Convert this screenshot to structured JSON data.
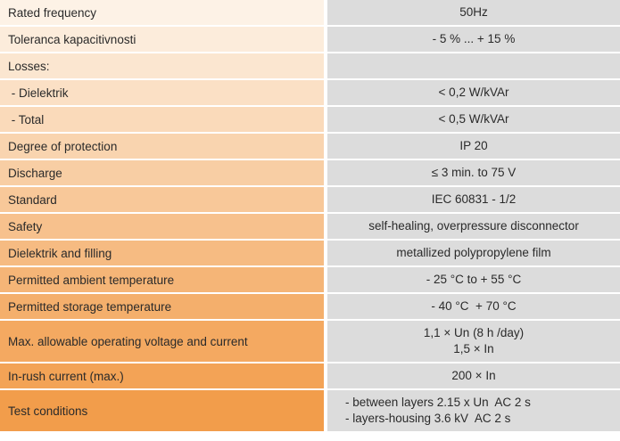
{
  "spec_table": {
    "rows": [
      {
        "label": "Rated frequency",
        "lines": [
          "50Hz"
        ]
      },
      {
        "label": "Toleranca kapacitivnosti",
        "lines": [
          "- 5 % ... + 15 %"
        ]
      },
      {
        "label": "Losses:",
        "lines": []
      },
      {
        "label": " - Dielektrik",
        "lines": [
          "< 0,2 W/kVAr"
        ]
      },
      {
        "label": " - Total",
        "lines": [
          "< 0,5 W/kVAr"
        ]
      },
      {
        "label": "Degree of protection",
        "lines": [
          "IP 20"
        ]
      },
      {
        "label": "Discharge",
        "lines": [
          "≤ 3 min. to 75 V"
        ]
      },
      {
        "label": "Standard",
        "lines": [
          "IEC 60831 - 1/2"
        ]
      },
      {
        "label": "Safety",
        "lines": [
          "self-healing, overpressure disconnector"
        ]
      },
      {
        "label": "Dielektrik and filling",
        "lines": [
          "metallized polypropylene film"
        ]
      },
      {
        "label": "Permitted ambient temperature",
        "lines": [
          "- 25 °C to + 55 °C"
        ]
      },
      {
        "label": "Permitted storage temperature",
        "lines": [
          "- 40 °C  + 70 °C"
        ]
      },
      {
        "label": "Max. allowable operating voltage and current",
        "lines": [
          "1,1 × Un (8 h /day)",
          "1,5 × In"
        ]
      },
      {
        "label": "In-rush current (max.)",
        "lines": [
          "200 × In"
        ]
      },
      {
        "label": "Test conditions",
        "lines": [
          "- between layers 2.15 x Un  AC 2 s",
          "- layers-housing 3.6 kV  AC 2 s"
        ]
      }
    ]
  },
  "colors": {
    "label_gradient_start": "#fdf2e6",
    "label_gradient_end": "#f29d4b",
    "value_background": "#dcdcdc",
    "text": "#2a2a2a"
  }
}
